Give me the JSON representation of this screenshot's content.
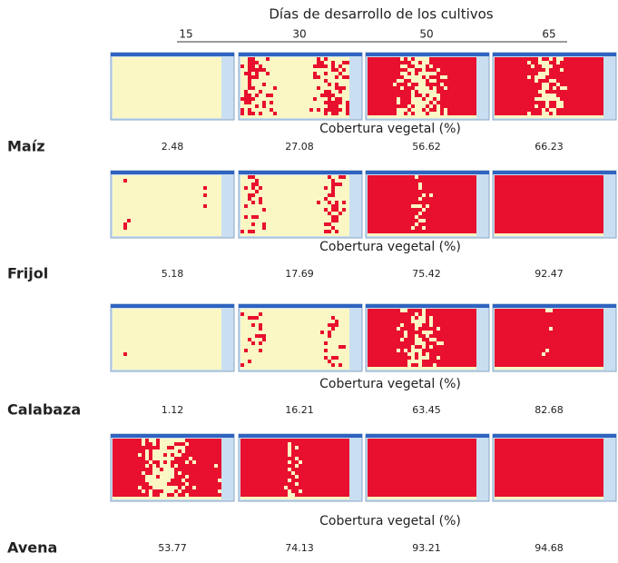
{
  "header": {
    "title": "Días de desarrollo de los cultivos",
    "days": [
      15,
      30,
      50,
      65
    ]
  },
  "crops": [
    {
      "name": "Maíz",
      "label": "Cobertura vegetal (%)",
      "values": [
        2.48,
        27.08,
        56.62,
        66.23
      ]
    },
    {
      "name": "Frijol",
      "label": "Cobertura vegetal (%)",
      "values": [
        5.18,
        17.69,
        75.42,
        92.47
      ]
    },
    {
      "name": "Calabaza",
      "label": "Cobertura vegetal (%)",
      "values": [
        1.12,
        16.21,
        63.45,
        82.68
      ]
    },
    {
      "name": "Avena",
      "label": "Cobertura vegetal (%)",
      "values": [
        53.77,
        74.13,
        93.21,
        94.68
      ]
    }
  ]
}
